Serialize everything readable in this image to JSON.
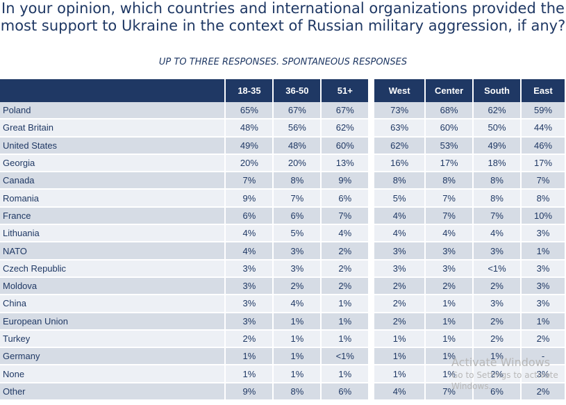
{
  "title": "In your opinion, which countries and international organizations provided the most support to Ukraine in the context of Russian military aggression, if any?",
  "subtitle": "UP TO THREE RESPONSES. SPONTANEOUS RESPONSES",
  "watermark": {
    "line1": "Activate Windows",
    "line2": "Go to Settings to activate Windows."
  },
  "chart_data": {
    "type": "table",
    "title": "In your opinion, which countries and international organizations provided the most support to Ukraine in the context of Russian military aggression, if any?",
    "subtitle": "UP TO THREE RESPONSES. SPONTANEOUS RESPONSES",
    "age_columns": [
      "18-35",
      "36-50",
      "51+"
    ],
    "region_columns": [
      "West",
      "Center",
      "South",
      "East"
    ],
    "rows": [
      {
        "name": "Poland",
        "age": [
          "65%",
          "67%",
          "67%"
        ],
        "region": [
          "73%",
          "68%",
          "62%",
          "59%"
        ]
      },
      {
        "name": "Great Britain",
        "age": [
          "48%",
          "56%",
          "62%"
        ],
        "region": [
          "63%",
          "60%",
          "50%",
          "44%"
        ]
      },
      {
        "name": "United States",
        "age": [
          "49%",
          "48%",
          "60%"
        ],
        "region": [
          "62%",
          "53%",
          "49%",
          "46%"
        ]
      },
      {
        "name": "Georgia",
        "age": [
          "20%",
          "20%",
          "13%"
        ],
        "region": [
          "16%",
          "17%",
          "18%",
          "17%"
        ]
      },
      {
        "name": "Canada",
        "age": [
          "7%",
          "8%",
          "9%"
        ],
        "region": [
          "8%",
          "8%",
          "8%",
          "7%"
        ]
      },
      {
        "name": "Romania",
        "age": [
          "9%",
          "7%",
          "6%"
        ],
        "region": [
          "5%",
          "7%",
          "8%",
          "8%"
        ]
      },
      {
        "name": "France",
        "age": [
          "6%",
          "6%",
          "7%"
        ],
        "region": [
          "4%",
          "7%",
          "7%",
          "10%"
        ]
      },
      {
        "name": "Lithuania",
        "age": [
          "4%",
          "5%",
          "4%"
        ],
        "region": [
          "4%",
          "4%",
          "4%",
          "3%"
        ]
      },
      {
        "name": "NATO",
        "age": [
          "4%",
          "3%",
          "2%"
        ],
        "region": [
          "3%",
          "3%",
          "3%",
          "1%"
        ]
      },
      {
        "name": "Czech Republic",
        "age": [
          "3%",
          "3%",
          "2%"
        ],
        "region": [
          "3%",
          "3%",
          "<1%",
          "3%"
        ]
      },
      {
        "name": "Moldova",
        "age": [
          "3%",
          "2%",
          "2%"
        ],
        "region": [
          "2%",
          "2%",
          "2%",
          "3%"
        ]
      },
      {
        "name": "China",
        "age": [
          "3%",
          "4%",
          "1%"
        ],
        "region": [
          "2%",
          "1%",
          "3%",
          "3%"
        ]
      },
      {
        "name": "European Union",
        "age": [
          "3%",
          "1%",
          "1%"
        ],
        "region": [
          "2%",
          "1%",
          "2%",
          "1%"
        ]
      },
      {
        "name": "Turkey",
        "age": [
          "2%",
          "1%",
          "1%"
        ],
        "region": [
          "1%",
          "1%",
          "2%",
          "2%"
        ]
      },
      {
        "name": "Germany",
        "age": [
          "1%",
          "1%",
          "<1%"
        ],
        "region": [
          "1%",
          "1%",
          "1%",
          "-"
        ]
      },
      {
        "name": "None",
        "age": [
          "1%",
          "1%",
          "1%"
        ],
        "region": [
          "1%",
          "1%",
          "2%",
          "3%"
        ]
      },
      {
        "name": "Other",
        "age": [
          "9%",
          "8%",
          "6%"
        ],
        "region": [
          "4%",
          "7%",
          "6%",
          "2%"
        ]
      }
    ]
  }
}
